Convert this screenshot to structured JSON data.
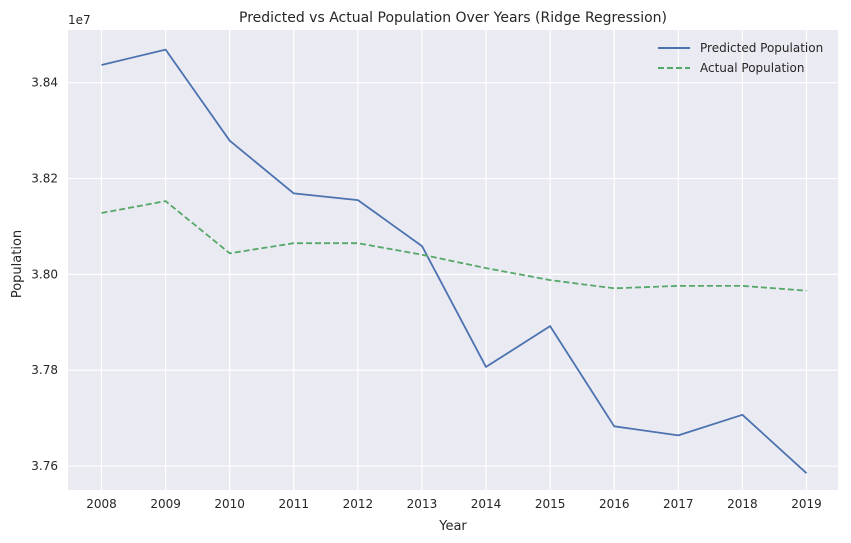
{
  "chart_data": {
    "type": "line",
    "title": "Predicted vs Actual Population Over Years (Ridge Regression)",
    "xlabel": "Year",
    "ylabel": "Population",
    "y_offset_label": "1e7",
    "categories": [
      "2008",
      "2009",
      "2010",
      "2011",
      "2012",
      "2013",
      "2014",
      "2015",
      "2016",
      "2017",
      "2018",
      "2019"
    ],
    "ylim": [
      37550000,
      38510000
    ],
    "yticks": [
      37600000,
      37800000,
      38000000,
      38200000,
      38400000
    ],
    "ytick_labels": [
      "3.76",
      "3.78",
      "3.80",
      "3.82",
      "3.84"
    ],
    "grid": true,
    "legend_position": "top-right",
    "series": [
      {
        "name": "Predicted Population",
        "color": "#4c72b0",
        "style": "solid",
        "values": [
          38437000,
          38469000,
          38279000,
          38169000,
          38155000,
          38059000,
          37807000,
          37892000,
          37683000,
          37664000,
          37707000,
          37585000
        ]
      },
      {
        "name": "Actual Population",
        "color": "#55a868",
        "style": "dashed",
        "values": [
          38128000,
          38153000,
          38044000,
          38065000,
          38065000,
          38041000,
          38013000,
          37988000,
          37971000,
          37976000,
          37976000,
          37966000
        ]
      }
    ]
  }
}
